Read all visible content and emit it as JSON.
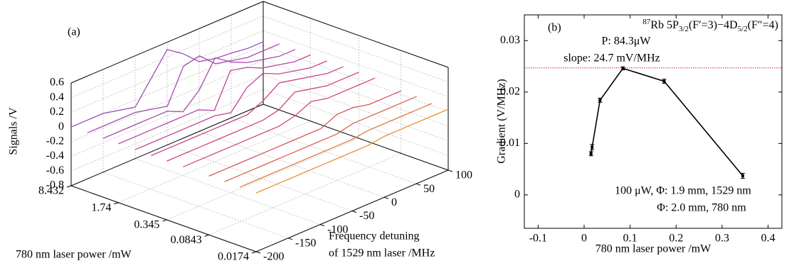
{
  "chart_data": [
    {
      "type": "waterfall3d",
      "panel_label": "(a)",
      "z_axis_label": "Signals /V",
      "power_axis_label": "780 nm laser power /mW",
      "x_axis_label": [
        "Frequency detuning",
        "of 1529 nm laser /MHz"
      ],
      "x": [
        -200,
        -175,
        -150,
        -125,
        -100,
        -75,
        -50,
        -25,
        0,
        25,
        50,
        75,
        100
      ],
      "xlim": [
        -200,
        100
      ],
      "xticks": [
        -200,
        -150,
        -100,
        -50,
        0,
        50,
        100
      ],
      "zlim": [
        -0.8,
        0.6
      ],
      "zticks": [
        -0.8,
        -0.6,
        -0.4,
        -0.2,
        0,
        0.2,
        0.4,
        0.6
      ],
      "powerlim": [
        8.432,
        0.0174
      ],
      "power_log": true,
      "powerticks": [
        8.432,
        1.74,
        0.345,
        0.0843,
        0.0174
      ],
      "grid": true,
      "series": [
        {
          "power": 8.432,
          "color": "#9b4fb5",
          "values": [
            0,
            0,
            0,
            -0.05,
            -0.1,
            0.2,
            0.5,
            0.35,
            0.15,
            0.1,
            0.08,
            0.05,
            0.05
          ]
        },
        {
          "power": 4.9,
          "color": "#a24db0",
          "values": [
            0,
            0,
            0,
            0,
            -0.05,
            -0.1,
            0.35,
            0.4,
            0.2,
            0.15,
            0.1,
            0.1,
            0.1
          ]
        },
        {
          "power": 2.9,
          "color": "#a94aa8",
          "values": [
            0,
            0,
            0,
            0,
            0,
            -0.1,
            0.1,
            0.45,
            0.3,
            0.2,
            0.15,
            0.1,
            0.1
          ]
        },
        {
          "power": 1.74,
          "color": "#b447a0",
          "values": [
            0,
            0,
            0,
            0,
            0,
            0,
            -0.1,
            0.35,
            0.3,
            0.2,
            0.15,
            0.1,
            0.1
          ]
        },
        {
          "power": 1.0,
          "color": "#bf4597",
          "values": [
            0,
            0,
            0,
            0,
            0,
            0,
            -0.05,
            0.2,
            0.3,
            0.2,
            0.15,
            0.1,
            0.1
          ]
        },
        {
          "power": 0.58,
          "color": "#c8448a",
          "values": [
            0,
            0,
            0,
            0,
            0,
            0,
            0,
            0.1,
            0.25,
            0.2,
            0.15,
            0.1,
            0.1
          ]
        },
        {
          "power": 0.345,
          "color": "#d0447c",
          "values": [
            0,
            0,
            0,
            0,
            0,
            0,
            0,
            0.05,
            0.2,
            0.15,
            0.1,
            0.1,
            0.1
          ]
        },
        {
          "power": 0.2,
          "color": "#d44a6c",
          "values": [
            0,
            0,
            0,
            0,
            0,
            0,
            0,
            0.05,
            0.15,
            0.1,
            0.1,
            0.1,
            0.1
          ]
        },
        {
          "power": 0.0843,
          "color": "#d8555e",
          "values": [
            0,
            0,
            0,
            0,
            0,
            0,
            0,
            0,
            0.1,
            0.1,
            0.05,
            0.05,
            0.05
          ]
        },
        {
          "power": 0.05,
          "color": "#dc6450",
          "values": [
            0,
            0,
            0,
            0,
            0,
            0,
            0,
            0,
            0.05,
            0.05,
            0.05,
            0.05,
            0.05
          ]
        },
        {
          "power": 0.03,
          "color": "#e07a40",
          "values": [
            0,
            0,
            0,
            0,
            0,
            0,
            0,
            0,
            0.03,
            0.03,
            0.03,
            0.03,
            0.03
          ]
        },
        {
          "power": 0.0174,
          "color": "#e39236",
          "values": [
            0,
            0,
            0,
            0,
            0,
            0,
            0,
            0,
            0.03,
            0.03,
            0.03,
            0.03,
            0.03
          ]
        }
      ]
    },
    {
      "type": "line",
      "panel_label": "(b)",
      "title_parts": [
        "87",
        "Rb 5P",
        "3/2",
        "(F′=3)−4D",
        "5/2",
        "(F″=4)"
      ],
      "annotations": [
        "P: 84.3μW",
        "slope: 24.7 mV/MHz",
        "100 μW, Φ: 1.9 mm, 1529 nm",
        "Φ: 2.0 mm, 780 nm"
      ],
      "x_label": "780 nm laser power /mW",
      "y_label": "Gradient (V/MHz)",
      "x": [
        0.015,
        0.0174,
        0.0345,
        0.0843,
        0.174,
        0.345
      ],
      "values": [
        0.008,
        0.0093,
        0.0184,
        0.0246,
        0.0221,
        0.0037
      ],
      "errors": [
        0.0004,
        0.0005,
        0.0004,
        0.0003,
        0.0004,
        0.0005
      ],
      "color": "#000000",
      "hline": 0.0247,
      "hline_color": "#e02020",
      "xlim": [
        -0.13,
        0.43
      ],
      "xticks": [
        -0.1,
        0,
        0.1,
        0.2,
        0.3,
        0.4
      ],
      "ylim": [
        -0.0065,
        0.035
      ],
      "yticks": [
        0,
        0.01,
        0.02,
        0.03
      ]
    }
  ]
}
